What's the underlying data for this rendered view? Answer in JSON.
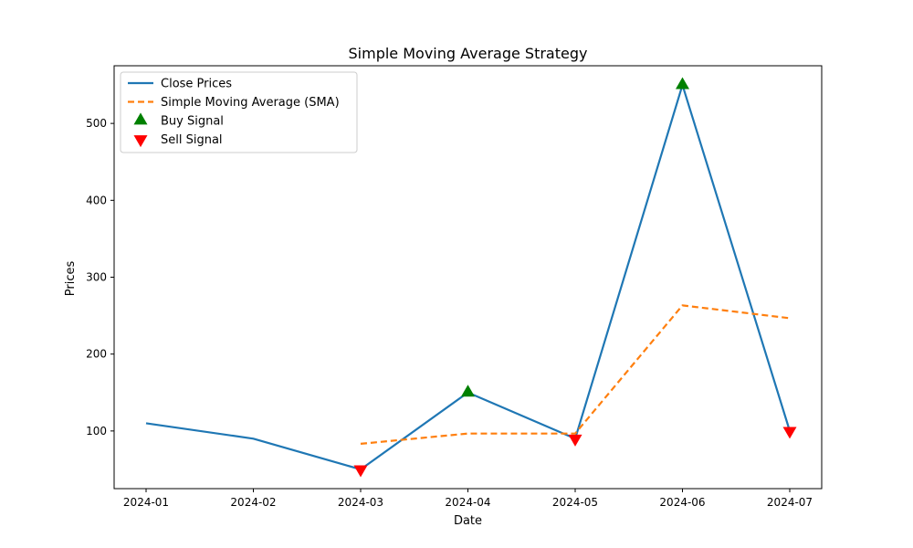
{
  "chart_data": {
    "type": "line",
    "title": "Simple Moving Average Strategy",
    "xlabel": "Date",
    "ylabel": "Prices",
    "x": [
      "2024-01",
      "2024-02",
      "2024-03",
      "2024-04",
      "2024-05",
      "2024-06",
      "2024-07"
    ],
    "x_ticks": [
      "2024-01",
      "2024-02",
      "2024-03",
      "2024-04",
      "2024-05",
      "2024-06",
      "2024-07"
    ],
    "y_ticks": [
      100,
      200,
      300,
      400,
      500
    ],
    "ylim": [
      25,
      575
    ],
    "grid": false,
    "legend_position": "top-left",
    "series": [
      {
        "name": "Close Prices",
        "color": "#1f77b4",
        "style": "solid",
        "values": [
          110,
          90,
          50,
          150,
          90,
          550,
          100
        ]
      },
      {
        "name": "Simple Moving Average (SMA)",
        "color": "#ff7f0e",
        "style": "dashed",
        "values": [
          null,
          null,
          83.33,
          96.67,
          96.67,
          263.33,
          246.67
        ]
      }
    ],
    "signals": [
      {
        "name": "Buy Signal",
        "color": "#008000",
        "marker": "triangle-up",
        "points": [
          {
            "x": "2024-04",
            "y": 150
          },
          {
            "x": "2024-06",
            "y": 550
          }
        ]
      },
      {
        "name": "Sell Signal",
        "color": "#ff0000",
        "marker": "triangle-down",
        "points": [
          {
            "x": "2024-03",
            "y": 50
          },
          {
            "x": "2024-05",
            "y": 90
          },
          {
            "x": "2024-07",
            "y": 100
          }
        ]
      }
    ]
  }
}
